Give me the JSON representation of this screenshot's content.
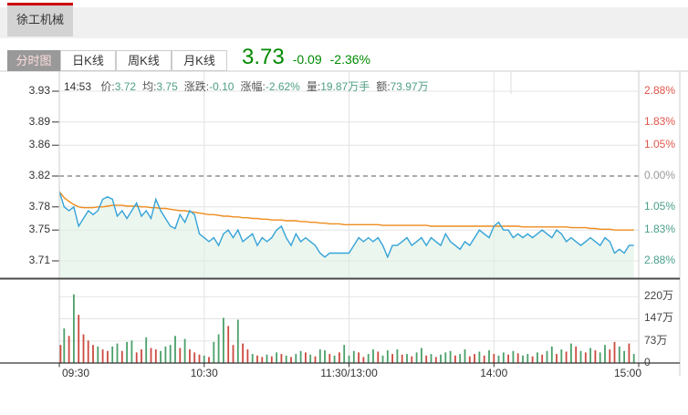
{
  "stock_tab": {
    "name": "徐工机械"
  },
  "view_tabs": [
    {
      "label": "分时图",
      "active": true
    },
    {
      "label": "日K线",
      "active": false
    },
    {
      "label": "周K线",
      "active": false
    },
    {
      "label": "月K线",
      "active": false
    }
  ],
  "quote": {
    "price": "3.73",
    "change": "-0.09",
    "change_pct": "-2.36%"
  },
  "info_bar": {
    "time": "14:53",
    "segments": [
      {
        "label": "价:",
        "value": "3.72"
      },
      {
        "label": "均:",
        "value": "3.75"
      },
      {
        "label": "涨跌:",
        "value": "-0.10"
      },
      {
        "label": "涨幅:",
        "value": "-2.62%"
      },
      {
        "label": "量:",
        "value": "19.87万手"
      },
      {
        "label": "额:",
        "value": "73.97万"
      }
    ]
  },
  "colors": {
    "up": "#e0554a",
    "down": "#4a9e8a",
    "flat": "#999999",
    "price_line": "#35a3d8",
    "avg_line": "#ee8c1e",
    "fill": "rgba(222,240,226,0.6)",
    "vol_up": "#cc4a3f",
    "vol_down": "#4aa06a",
    "quote_green": "#008a00",
    "value_green": "#4f9e87",
    "tab_red": "#cc0000"
  },
  "chart_data": {
    "type": "line",
    "title": "徐工机械 分时图",
    "x": {
      "unit": "minutes_from_09:30",
      "interval_min": 2,
      "total_min": 240,
      "session_labels": [
        "09:30",
        "10:30",
        "11:30/13:00",
        "14:00",
        "15:00"
      ]
    },
    "prev_close": 3.82,
    "y_left_ticks": [
      3.93,
      3.89,
      3.86,
      3.82,
      3.78,
      3.75,
      3.71
    ],
    "y_right_ticks": [
      {
        "label": "2.88%",
        "dir": "up"
      },
      {
        "label": "1.83%",
        "dir": "up"
      },
      {
        "label": "1.05%",
        "dir": "up"
      },
      {
        "label": "0.00%",
        "dir": "flat"
      },
      {
        "label": "1.05%",
        "dir": "down"
      },
      {
        "label": "1.83%",
        "dir": "down"
      },
      {
        "label": "2.88%",
        "dir": "down"
      }
    ],
    "volume_ticks": [
      {
        "label": "220万",
        "v": 220
      },
      {
        "label": "147万",
        "v": 147
      },
      {
        "label": "73万",
        "v": 73
      },
      {
        "label": "0",
        "v": 0
      }
    ],
    "series": [
      {
        "name": "price",
        "color_key": "price_line",
        "values": [
          3.8,
          3.78,
          3.775,
          3.78,
          3.755,
          3.765,
          3.775,
          3.77,
          3.775,
          3.79,
          3.793,
          3.79,
          3.768,
          3.775,
          3.765,
          3.775,
          3.785,
          3.768,
          3.775,
          3.765,
          3.79,
          3.775,
          3.765,
          3.755,
          3.752,
          3.77,
          3.76,
          3.775,
          3.77,
          3.745,
          3.74,
          3.735,
          3.74,
          3.73,
          3.745,
          3.75,
          3.74,
          3.75,
          3.735,
          3.74,
          3.745,
          3.73,
          3.74,
          3.735,
          3.74,
          3.75,
          3.755,
          3.74,
          3.73,
          3.745,
          3.735,
          3.74,
          3.735,
          3.73,
          3.72,
          3.715,
          3.72,
          3.72,
          3.72,
          3.72,
          3.72,
          3.73,
          3.74,
          3.735,
          3.74,
          3.735,
          3.74,
          3.73,
          3.715,
          3.73,
          3.73,
          3.735,
          3.74,
          3.73,
          3.735,
          3.74,
          3.73,
          3.74,
          3.735,
          3.73,
          3.745,
          3.735,
          3.73,
          3.725,
          3.735,
          3.73,
          3.74,
          3.75,
          3.745,
          3.74,
          3.755,
          3.76,
          3.75,
          3.75,
          3.74,
          3.745,
          3.74,
          3.745,
          3.74,
          3.745,
          3.75,
          3.745,
          3.74,
          3.75,
          3.745,
          3.735,
          3.74,
          3.735,
          3.73,
          3.735,
          3.74,
          3.735,
          3.73,
          3.74,
          3.735,
          3.72,
          3.725,
          3.72,
          3.73,
          3.73
        ]
      },
      {
        "name": "average",
        "color_key": "avg_line",
        "values": [
          3.8,
          3.792,
          3.787,
          3.783,
          3.78,
          3.779,
          3.779,
          3.779,
          3.78,
          3.78,
          3.781,
          3.782,
          3.782,
          3.782,
          3.781,
          3.781,
          3.781,
          3.78,
          3.78,
          3.779,
          3.779,
          3.778,
          3.778,
          3.777,
          3.776,
          3.775,
          3.775,
          3.774,
          3.773,
          3.772,
          3.771,
          3.77,
          3.77,
          3.769,
          3.768,
          3.768,
          3.767,
          3.767,
          3.766,
          3.766,
          3.765,
          3.765,
          3.764,
          3.764,
          3.763,
          3.763,
          3.763,
          3.762,
          3.762,
          3.762,
          3.761,
          3.761,
          3.76,
          3.76,
          3.759,
          3.759,
          3.758,
          3.758,
          3.758,
          3.757,
          3.757,
          3.757,
          3.757,
          3.757,
          3.757,
          3.757,
          3.757,
          3.756,
          3.756,
          3.756,
          3.756,
          3.756,
          3.756,
          3.756,
          3.756,
          3.756,
          3.756,
          3.755,
          3.755,
          3.755,
          3.755,
          3.755,
          3.755,
          3.755,
          3.755,
          3.755,
          3.755,
          3.755,
          3.755,
          3.755,
          3.755,
          3.755,
          3.755,
          3.755,
          3.755,
          3.755,
          3.754,
          3.754,
          3.754,
          3.754,
          3.754,
          3.754,
          3.754,
          3.754,
          3.754,
          3.754,
          3.753,
          3.753,
          3.753,
          3.753,
          3.752,
          3.752,
          3.751,
          3.751,
          3.751,
          3.75,
          3.75,
          3.75,
          3.75,
          3.75
        ]
      }
    ],
    "volume": {
      "unit": "万",
      "values": [
        60,
        115,
        90,
        228,
        160,
        95,
        75,
        60,
        55,
        45,
        40,
        55,
        65,
        40,
        70,
        75,
        35,
        45,
        85,
        50,
        45,
        40,
        55,
        60,
        90,
        50,
        80,
        45,
        35,
        28,
        25,
        20,
        70,
        95,
        150,
        123,
        60,
        144,
        65,
        45,
        30,
        25,
        20,
        28,
        22,
        35,
        30,
        25,
        20,
        30,
        40,
        35,
        28,
        22,
        45,
        42,
        30,
        25,
        35,
        60,
        25,
        40,
        35,
        20,
        30,
        45,
        38,
        25,
        42,
        30,
        45,
        28,
        30,
        22,
        35,
        50,
        25,
        30,
        20,
        28,
        35,
        40,
        25,
        30,
        45,
        22,
        30,
        38,
        25,
        42,
        30,
        25,
        35,
        28,
        40,
        32,
        25,
        30,
        22,
        35,
        28,
        40,
        55,
        30,
        45,
        38,
        65,
        55,
        40,
        35,
        50,
        42,
        35,
        60,
        45,
        70,
        55,
        40,
        65,
        30
      ],
      "dir": [
        "r",
        "g",
        "r",
        "g",
        "r",
        "r",
        "r",
        "r",
        "g",
        "r",
        "r",
        "g",
        "g",
        "r",
        "g",
        "g",
        "r",
        "r",
        "g",
        "r",
        "r",
        "g",
        "g",
        "g",
        "g",
        "r",
        "g",
        "r",
        "r",
        "r",
        "g",
        "r",
        "g",
        "g",
        "g",
        "r",
        "r",
        "g",
        "r",
        "r",
        "g",
        "r",
        "r",
        "g",
        "r",
        "g",
        "r",
        "g",
        "r",
        "g",
        "g",
        "r",
        "g",
        "r",
        "g",
        "g",
        "r",
        "g",
        "r",
        "g",
        "g",
        "g",
        "r",
        "r",
        "g",
        "g",
        "r",
        "g",
        "g",
        "r",
        "g",
        "r",
        "g",
        "r",
        "g",
        "g",
        "r",
        "g",
        "r",
        "g",
        "g",
        "g",
        "r",
        "g",
        "g",
        "r",
        "r",
        "g",
        "r",
        "g",
        "r",
        "g",
        "g",
        "r",
        "g",
        "r",
        "g",
        "g",
        "r",
        "g",
        "r",
        "g",
        "g",
        "r",
        "g",
        "r",
        "g",
        "r",
        "g",
        "r",
        "g",
        "r",
        "g",
        "g",
        "r",
        "r",
        "g",
        "g",
        "r",
        "g"
      ]
    }
  }
}
